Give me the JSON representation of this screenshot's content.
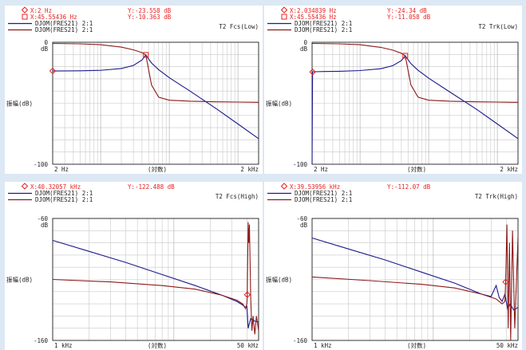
{
  "colors": {
    "background": "#dce8f4",
    "series1": "#1a1a8c",
    "series2": "#8c1a1a",
    "cursor": "#e82020",
    "grid": "#c8c8c8",
    "frame": "#000000"
  },
  "chart_data": [
    {
      "type": "line",
      "id": "fcs-low",
      "title": "T2 Fcs(Low)",
      "xscale": "log",
      "xlim": [
        2,
        2000
      ],
      "ylim": [
        -100,
        0
      ],
      "xticks": [
        "2  Hz",
        "(対数)",
        "2 kHz"
      ],
      "yticks": [
        "0\ndB",
        "-100"
      ],
      "ylabel": "振幅(dB)",
      "unit_label": "dB",
      "cursors": [
        {
          "marker": "diamond",
          "x_label": "X:2  Hz",
          "y_label": "Y:-23.558 dB",
          "x": 2,
          "y": -23.558
        },
        {
          "marker": "square",
          "x_label": "X:45.55436  Hz",
          "y_label": "Y:-10.363 dB",
          "x": 45.55436,
          "y": -10.363
        }
      ],
      "legend": [
        "DJOM(FRES21) 2:1",
        "DJOM(FRES21) 2:1"
      ],
      "series": [
        {
          "color": "#1a1a8c",
          "x": [
            2,
            5,
            10,
            20,
            30,
            40,
            45.55,
            55,
            70,
            100,
            200,
            500,
            1000,
            2000
          ],
          "y": [
            -23.6,
            -23.4,
            -23.0,
            -21.5,
            -19.0,
            -14.5,
            -10.4,
            -17.0,
            -22.5,
            -29.0,
            -40.0,
            -55.0,
            -67.0,
            -79.0
          ]
        },
        {
          "color": "#8c1a1a",
          "x": [
            2,
            5,
            10,
            20,
            30,
            40,
            45.55,
            55,
            70,
            100,
            200,
            500,
            1000,
            2000
          ],
          "y": [
            -1.0,
            -1.3,
            -2.0,
            -4.0,
            -6.2,
            -8.5,
            -10.4,
            -35.0,
            -45.0,
            -47.5,
            -48.3,
            -48.8,
            -49.0,
            -49.2
          ]
        }
      ]
    },
    {
      "type": "line",
      "id": "trk-low",
      "title": "T2 Trk(Low)",
      "xscale": "log",
      "xlim": [
        2,
        2000
      ],
      "ylim": [
        -100,
        0
      ],
      "xticks": [
        "2  Hz",
        "(対数)",
        "2 kHz"
      ],
      "yticks": [
        "0\ndB",
        "-100"
      ],
      "ylabel": "振幅(dB)",
      "unit_label": "dB",
      "cursors": [
        {
          "marker": "diamond",
          "x_label": "X:2.034839  Hz",
          "y_label": "Y:-24.34 dB",
          "x": 2.034839,
          "y": -24.34
        },
        {
          "marker": "square",
          "x_label": "X:45.55436  Hz",
          "y_label": "Y:-11.058 dB",
          "x": 45.55436,
          "y": -11.058
        }
      ],
      "legend": [
        "DJOM(FRES21) 2:1",
        "DJOM(FRES21) 2:1"
      ],
      "series": [
        {
          "color": "#1a1a8c",
          "x": [
            2,
            2.03,
            2.1,
            3,
            5,
            10,
            20,
            30,
            40,
            45.55,
            55,
            70,
            100,
            200,
            500,
            1000,
            2000
          ],
          "y": [
            -100,
            -24.3,
            -24.2,
            -24.0,
            -23.8,
            -23.2,
            -21.7,
            -19.2,
            -15.0,
            -11.1,
            -17.5,
            -23.0,
            -29.5,
            -40.5,
            -55.0,
            -67.0,
            -79.0
          ]
        },
        {
          "color": "#8c1a1a",
          "x": [
            2,
            5,
            10,
            20,
            30,
            40,
            45.55,
            55,
            70,
            100,
            200,
            500,
            1000,
            2000
          ],
          "y": [
            -1.0,
            -1.3,
            -2.0,
            -4.2,
            -6.5,
            -9.0,
            -11.1,
            -35.0,
            -45.0,
            -47.5,
            -48.3,
            -48.8,
            -49.0,
            -49.2
          ]
        }
      ]
    },
    {
      "type": "line",
      "id": "fcs-high",
      "title": "T2 Fcs(High)",
      "xscale": "log",
      "xlim": [
        1000,
        50000
      ],
      "ylim": [
        -160,
        -60
      ],
      "xticks": [
        "1 kHz",
        "(対数)",
        "50 kHz"
      ],
      "yticks": [
        "-60\ndB",
        "-160"
      ],
      "ylabel": "振幅(dB)",
      "unit_label": "dB",
      "cursors": [
        {
          "marker": "diamond",
          "x_label": "X:40.32057 kHz",
          "y_label": "Y:-122.488 dB",
          "x": 40320.57,
          "y": -122.488
        }
      ],
      "legend": [
        "DJOM(FRES21) 2:1",
        "DJOM(FRES21) 2:1"
      ],
      "series": [
        {
          "color": "#1a1a8c",
          "x": [
            1000,
            2000,
            4000,
            8000,
            15000,
            25000,
            33000,
            37000,
            39000,
            40000,
            41000,
            43000,
            46000,
            50000
          ],
          "y": [
            -78,
            -87,
            -96,
            -106,
            -115,
            -123,
            -128,
            -131,
            -133,
            -132,
            -150,
            -142,
            -144,
            -145
          ]
        },
        {
          "color": "#8c1a1a",
          "x": [
            1000,
            3000,
            8000,
            15000,
            25000,
            33000,
            37000,
            39000,
            40000,
            40320.57,
            41000,
            41500,
            42000,
            43000,
            44000,
            45000,
            46500,
            48000,
            50000
          ],
          "y": [
            -110,
            -112,
            -115,
            -118,
            -123,
            -127,
            -130,
            -134,
            -130,
            -122.5,
            -63,
            -80,
            -65,
            -125,
            -152,
            -140,
            -155,
            -140,
            -152
          ]
        }
      ]
    },
    {
      "type": "line",
      "id": "trk-high",
      "title": "T2 Trk(High)",
      "xscale": "log",
      "xlim": [
        1000,
        50000
      ],
      "ylim": [
        -160,
        -60
      ],
      "xticks": [
        "1 kHz",
        "(対数)",
        "50 kHz"
      ],
      "yticks": [
        "-60\ndB",
        "-160"
      ],
      "ylabel": "振幅(dB)",
      "unit_label": "dB",
      "cursors": [
        {
          "marker": "diamond",
          "x_label": "X:39.53956 kHz",
          "y_label": "Y:-112.07 dB",
          "x": 39539.56,
          "y": -112.07
        }
      ],
      "legend": [
        "DJOM(FRES21) 2:1",
        "DJOM(FRES21) 2:1"
      ],
      "series": [
        {
          "color": "#1a1a8c",
          "x": [
            1000,
            2000,
            4000,
            8000,
            15000,
            25000,
            30000,
            33000,
            35000,
            37000,
            39000,
            40000,
            41000,
            43000,
            46000,
            50000
          ],
          "y": [
            -76,
            -85,
            -94,
            -104,
            -113,
            -122,
            -124,
            -115,
            -125,
            -128,
            -122,
            -128,
            -134,
            -130,
            -135,
            -133
          ]
        },
        {
          "color": "#8c1a1a",
          "x": [
            1000,
            3000,
            8000,
            15000,
            25000,
            33000,
            37000,
            39000,
            39539.56,
            40500,
            41500,
            42500,
            43500,
            45000,
            47000,
            50000
          ],
          "y": [
            -108,
            -111,
            -114,
            -117,
            -122,
            -126,
            -130,
            -128,
            -112,
            -65,
            -150,
            -80,
            -160,
            -70,
            -150,
            -75
          ]
        }
      ]
    }
  ]
}
